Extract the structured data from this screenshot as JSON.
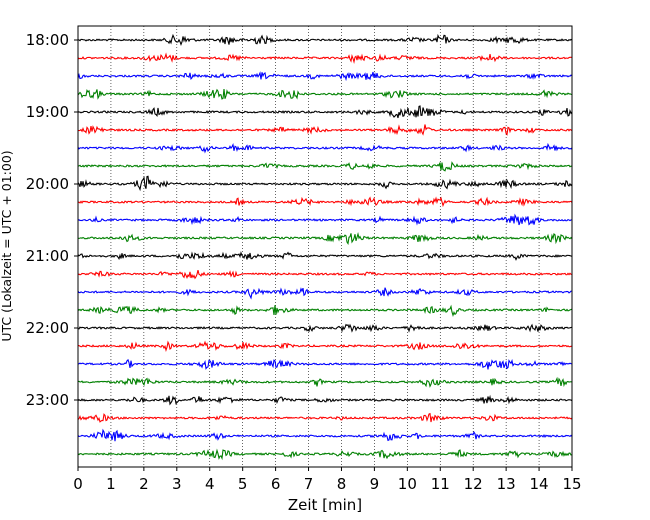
{
  "chart_data": {
    "type": "line",
    "title": "",
    "xlabel": "Zeit  [min]",
    "ylabel": "UTC (Lokalzeit = UTC + 01:00)",
    "xlim": [
      0,
      15
    ],
    "x_ticks": [
      "0",
      "1",
      "2",
      "3",
      "4",
      "5",
      "6",
      "7",
      "8",
      "9",
      "10",
      "11",
      "12",
      "13",
      "14",
      "15"
    ],
    "y_tick_labels": [
      "18:00",
      "19:00",
      "20:00",
      "21:00",
      "22:00",
      "23:00"
    ],
    "vertical_grid": "dotted, every 1 min",
    "trace_interval_min": 15,
    "trace_colors": [
      "#000000",
      "#ff0000",
      "#0000ff",
      "#008000"
    ],
    "traces": [
      {
        "start": "18:00"
      },
      {
        "start": "18:15"
      },
      {
        "start": "18:30"
      },
      {
        "start": "18:45"
      },
      {
        "start": "19:00"
      },
      {
        "start": "19:15"
      },
      {
        "start": "19:30"
      },
      {
        "start": "19:45"
      },
      {
        "start": "20:00"
      },
      {
        "start": "20:15"
      },
      {
        "start": "20:30"
      },
      {
        "start": "20:45"
      },
      {
        "start": "21:00"
      },
      {
        "start": "21:15"
      },
      {
        "start": "21:30"
      },
      {
        "start": "21:45"
      },
      {
        "start": "22:00"
      },
      {
        "start": "22:15"
      },
      {
        "start": "22:30"
      },
      {
        "start": "22:45"
      },
      {
        "start": "23:00"
      },
      {
        "start": "23:15"
      },
      {
        "start": "23:30"
      },
      {
        "start": "23:45"
      }
    ]
  }
}
